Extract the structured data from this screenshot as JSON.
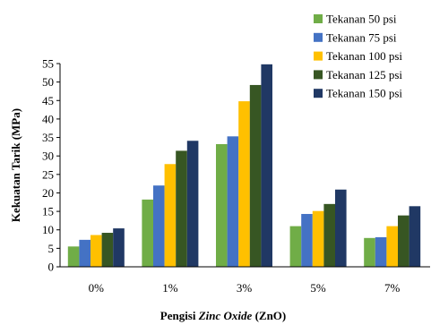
{
  "chart_data": {
    "type": "bar",
    "title": "",
    "xlabel": {
      "prefix": "Pengisi ",
      "italic": "Zinc Oxide",
      "suffix": " (ZnO)"
    },
    "ylabel": "Kekuatan Tarik (MPa)",
    "ylim": [
      0,
      55
    ],
    "yticks": [
      0,
      5,
      10,
      15,
      20,
      25,
      30,
      35,
      40,
      45,
      50,
      55
    ],
    "categories": [
      "0%",
      "1%",
      "3%",
      "5%",
      "7%"
    ],
    "series": [
      {
        "name": "Tekanan 50 psi",
        "color": "#70ad47",
        "values": [
          5.5,
          18.2,
          33.2,
          11.0,
          7.8
        ]
      },
      {
        "name": "Tekanan 75 psi",
        "color": "#4472c4",
        "values": [
          7.3,
          22.0,
          35.3,
          14.3,
          8.0
        ]
      },
      {
        "name": "Tekanan 100 psi",
        "color": "#ffc000",
        "values": [
          8.6,
          27.8,
          44.8,
          15.1,
          11.0
        ]
      },
      {
        "name": "Tekanan 125 psi",
        "color": "#375623",
        "values": [
          9.2,
          31.4,
          49.2,
          17.0,
          13.9
        ]
      },
      {
        "name": "Tekanan 150 psi",
        "color": "#203864",
        "values": [
          10.4,
          34.1,
          54.8,
          20.9,
          16.4
        ]
      }
    ],
    "grid": false,
    "legend_position": "top-right"
  }
}
